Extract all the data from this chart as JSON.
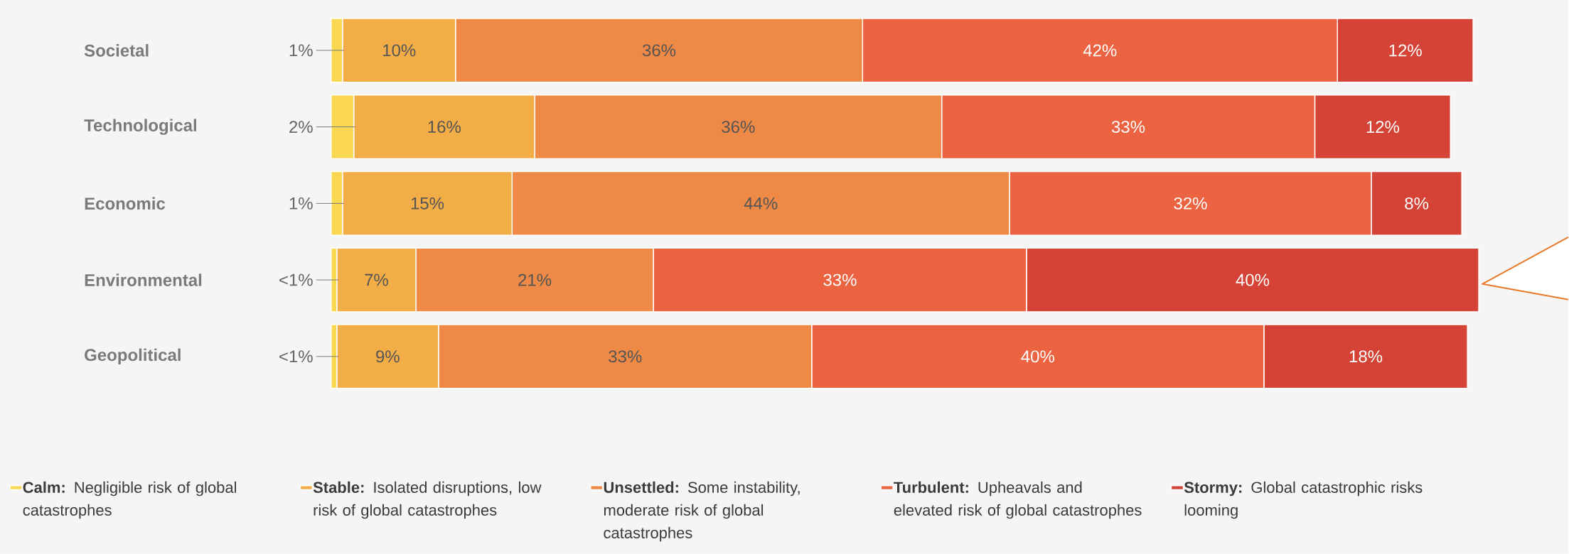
{
  "chart_data": {
    "type": "bar",
    "orientation": "horizontal",
    "stacked": true,
    "legend": "bottom",
    "categories": [
      "Societal",
      "Technological",
      "Economic",
      "Environmental",
      "Geopolitical"
    ],
    "series": [
      {
        "name": "**Calm:** Negligible risk of global catastrophes",
        "color": "#f9d750",
        "values": [
          1,
          2,
          1,
          0.5,
          0.5
        ],
        "value_labels": [
          "1%",
          "2%",
          "1%",
          "<1%",
          "<1%"
        ]
      },
      {
        "name": "**Stable:** Isolated disruptions, low risk of global catastrophes",
        "color": "#f3ad47",
        "values": [
          10,
          16,
          15,
          7,
          9
        ],
        "value_labels": [
          "10%",
          "16%",
          "15%",
          "7%",
          "9%"
        ]
      },
      {
        "name": "**Unsettled:** Some instability, moderate risk of global catastrophes",
        "color": "#ee8a45",
        "values": [
          36,
          36,
          44,
          21,
          33
        ],
        "value_labels": [
          "36%",
          "36%",
          "44%",
          "21%",
          "33%"
        ]
      },
      {
        "name": "**Turbulent:** Upheavals and elevated risk of global catastrophes",
        "color": "#ec6341",
        "values": [
          42,
          33,
          32,
          33,
          40
        ],
        "value_labels": [
          "42%",
          "33%",
          "32%",
          "33%",
          "40%"
        ]
      },
      {
        "name": "**Stormy:** Global catastrophic risks looming",
        "color": "#d44336",
        "values": [
          12,
          12,
          8,
          40,
          18
        ],
        "value_labels": [
          "12%",
          "12%",
          "8%",
          "40%",
          "18%"
        ]
      }
    ]
  }
}
